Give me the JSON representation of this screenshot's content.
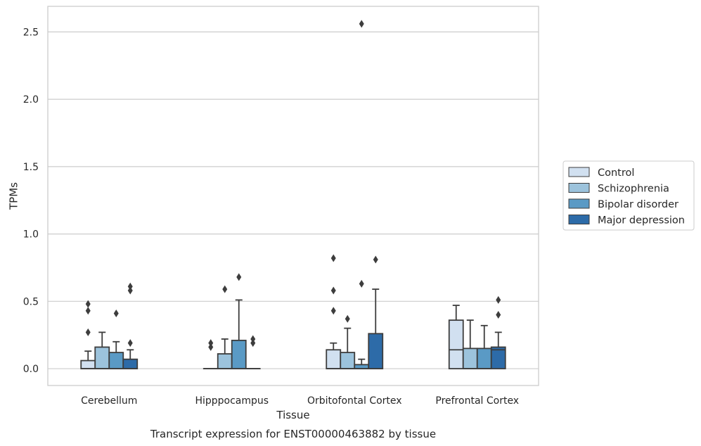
{
  "chart_data": {
    "type": "box",
    "title": "Transcript expression for ENST00000463882 by tissue",
    "xlabel": "Tissue",
    "ylabel": "TPMs",
    "ylim": [
      -0.125,
      2.69
    ],
    "yticks": [
      0.0,
      0.5,
      1.0,
      1.5,
      2.0,
      2.5
    ],
    "ytick_labels": [
      "0.0",
      "0.5",
      "1.0",
      "1.5",
      "2.0",
      "2.5"
    ],
    "grid": "horizontal",
    "legend_position": "right",
    "categories": [
      "Cerebellum",
      "Hipppocampus",
      "Orbitofontal Cortex",
      "Prefrontal Cortex"
    ],
    "series": [
      {
        "name": "Control",
        "color": "#d1e0f0",
        "boxes": [
          {
            "q1": 0.0,
            "median": 0.0,
            "q3": 0.06,
            "whislo": 0.0,
            "whishi": 0.13,
            "fliers": [
              0.27,
              0.43,
              0.48
            ]
          },
          {
            "q1": 0.0,
            "median": 0.0,
            "q3": 0.0,
            "whislo": 0.0,
            "whishi": 0.0,
            "fliers": [
              0.16,
              0.19
            ]
          },
          {
            "q1": 0.0,
            "median": 0.0,
            "q3": 0.14,
            "whislo": 0.0,
            "whishi": 0.19,
            "fliers": [
              0.43,
              0.58,
              0.82
            ]
          },
          {
            "q1": 0.0,
            "median": 0.14,
            "q3": 0.36,
            "whislo": 0.0,
            "whishi": 0.47,
            "fliers": []
          }
        ]
      },
      {
        "name": "Schizophrenia",
        "color": "#9cc3dc",
        "boxes": [
          {
            "q1": 0.0,
            "median": 0.0,
            "q3": 0.16,
            "whislo": 0.0,
            "whishi": 0.27,
            "fliers": []
          },
          {
            "q1": 0.0,
            "median": 0.0,
            "q3": 0.11,
            "whislo": 0.0,
            "whishi": 0.22,
            "fliers": [
              0.59
            ]
          },
          {
            "q1": 0.0,
            "median": 0.0,
            "q3": 0.12,
            "whislo": 0.0,
            "whishi": 0.3,
            "fliers": [
              0.37
            ]
          },
          {
            "q1": 0.0,
            "median": 0.0,
            "q3": 0.15,
            "whislo": 0.0,
            "whishi": 0.36,
            "fliers": []
          }
        ]
      },
      {
        "name": "Bipolar disorder",
        "color": "#5a9ac5",
        "boxes": [
          {
            "q1": 0.0,
            "median": 0.0,
            "q3": 0.12,
            "whislo": 0.0,
            "whishi": 0.2,
            "fliers": [
              0.41
            ]
          },
          {
            "q1": 0.0,
            "median": 0.0,
            "q3": 0.21,
            "whislo": 0.0,
            "whishi": 0.51,
            "fliers": [
              0.68
            ]
          },
          {
            "q1": 0.0,
            "median": 0.0,
            "q3": 0.03,
            "whislo": 0.0,
            "whishi": 0.07,
            "fliers": [
              0.63,
              2.56
            ]
          },
          {
            "q1": 0.0,
            "median": 0.0,
            "q3": 0.15,
            "whislo": 0.0,
            "whishi": 0.32,
            "fliers": []
          }
        ]
      },
      {
        "name": "Major depression",
        "color": "#2d6ba8",
        "boxes": [
          {
            "q1": 0.0,
            "median": 0.0,
            "q3": 0.07,
            "whislo": 0.0,
            "whishi": 0.14,
            "fliers": [
              0.19,
              0.58,
              0.61
            ]
          },
          {
            "q1": 0.0,
            "median": 0.0,
            "q3": 0.0,
            "whislo": 0.0,
            "whishi": 0.0,
            "fliers": [
              0.19,
              0.22
            ]
          },
          {
            "q1": 0.0,
            "median": 0.0,
            "q3": 0.26,
            "whislo": 0.0,
            "whishi": 0.59,
            "fliers": [
              0.81
            ]
          },
          {
            "q1": 0.0,
            "median": 0.14,
            "q3": 0.16,
            "whislo": 0.0,
            "whishi": 0.27,
            "fliers": [
              0.4,
              0.51
            ]
          }
        ]
      }
    ]
  }
}
